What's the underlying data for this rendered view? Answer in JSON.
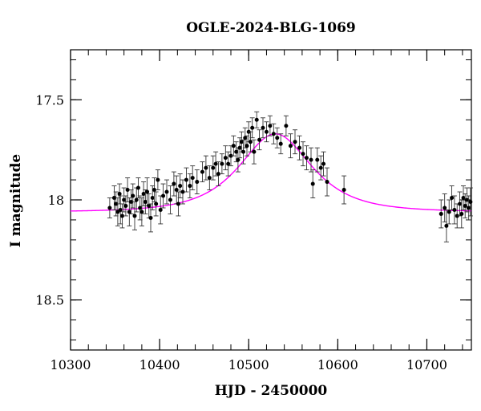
{
  "chart_data": {
    "type": "scatter",
    "title": "OGLE-2024-BLG-1069",
    "xlabel": "HJD - 2450000",
    "ylabel": "I magnitude",
    "xlim": [
      10300,
      10750
    ],
    "ylim": [
      18.75,
      17.25
    ],
    "y_inverted": true,
    "x_ticks": [
      10300,
      10400,
      10500,
      10600,
      10700
    ],
    "y_ticks": [
      17.5,
      18,
      18.5
    ],
    "x_tick_labels": [
      "10300",
      "10400",
      "10500",
      "10600",
      "10700"
    ],
    "y_tick_labels": [
      "17.5",
      "18",
      "18.5"
    ],
    "grid": false,
    "colors": {
      "points": "#000000",
      "model": "#ff00ff"
    },
    "series": [
      {
        "kind": "points_with_errorbars",
        "points": [
          {
            "x": 10344,
            "y": 18.04,
            "err": 0.05
          },
          {
            "x": 10349,
            "y": 17.99,
            "err": 0.06
          },
          {
            "x": 10351,
            "y": 18.02,
            "err": 0.06
          },
          {
            "x": 10353,
            "y": 18.06,
            "err": 0.07
          },
          {
            "x": 10355,
            "y": 17.97,
            "err": 0.05
          },
          {
            "x": 10356,
            "y": 18.05,
            "err": 0.07
          },
          {
            "x": 10358,
            "y": 18.08,
            "err": 0.06
          },
          {
            "x": 10360,
            "y": 18.0,
            "err": 0.06
          },
          {
            "x": 10362,
            "y": 18.03,
            "err": 0.05
          },
          {
            "x": 10364,
            "y": 17.95,
            "err": 0.06
          },
          {
            "x": 10366,
            "y": 18.06,
            "err": 0.07
          },
          {
            "x": 10368,
            "y": 18.01,
            "err": 0.06
          },
          {
            "x": 10370,
            "y": 17.98,
            "err": 0.06
          },
          {
            "x": 10372,
            "y": 18.08,
            "err": 0.07
          },
          {
            "x": 10374,
            "y": 18.0,
            "err": 0.06
          },
          {
            "x": 10376,
            "y": 17.94,
            "err": 0.05
          },
          {
            "x": 10378,
            "y": 18.04,
            "err": 0.06
          },
          {
            "x": 10380,
            "y": 18.06,
            "err": 0.07
          },
          {
            "x": 10382,
            "y": 17.97,
            "err": 0.06
          },
          {
            "x": 10384,
            "y": 18.01,
            "err": 0.06
          },
          {
            "x": 10386,
            "y": 17.96,
            "err": 0.07
          },
          {
            "x": 10388,
            "y": 18.03,
            "err": 0.06
          },
          {
            "x": 10390,
            "y": 18.09,
            "err": 0.07
          },
          {
            "x": 10392,
            "y": 17.99,
            "err": 0.06
          },
          {
            "x": 10394,
            "y": 17.95,
            "err": 0.06
          },
          {
            "x": 10396,
            "y": 18.02,
            "err": 0.06
          },
          {
            "x": 10398,
            "y": 17.9,
            "err": 0.05
          },
          {
            "x": 10401,
            "y": 18.05,
            "err": 0.07
          },
          {
            "x": 10404,
            "y": 17.98,
            "err": 0.06
          },
          {
            "x": 10408,
            "y": 17.96,
            "err": 0.06
          },
          {
            "x": 10412,
            "y": 18.0,
            "err": 0.07
          },
          {
            "x": 10416,
            "y": 17.92,
            "err": 0.06
          },
          {
            "x": 10419,
            "y": 17.95,
            "err": 0.07
          },
          {
            "x": 10421,
            "y": 18.02,
            "err": 0.06
          },
          {
            "x": 10423,
            "y": 17.93,
            "err": 0.06
          },
          {
            "x": 10426,
            "y": 17.96,
            "err": 0.06
          },
          {
            "x": 10430,
            "y": 17.9,
            "err": 0.06
          },
          {
            "x": 10434,
            "y": 17.93,
            "err": 0.06
          },
          {
            "x": 10437,
            "y": 17.89,
            "err": 0.06
          },
          {
            "x": 10442,
            "y": 17.91,
            "err": 0.06
          },
          {
            "x": 10448,
            "y": 17.86,
            "err": 0.05
          },
          {
            "x": 10452,
            "y": 17.84,
            "err": 0.06
          },
          {
            "x": 10456,
            "y": 17.89,
            "err": 0.06
          },
          {
            "x": 10460,
            "y": 17.84,
            "err": 0.06
          },
          {
            "x": 10463,
            "y": 17.82,
            "err": 0.06
          },
          {
            "x": 10466,
            "y": 17.87,
            "err": 0.06
          },
          {
            "x": 10470,
            "y": 17.82,
            "err": 0.05
          },
          {
            "x": 10474,
            "y": 17.79,
            "err": 0.06
          },
          {
            "x": 10477,
            "y": 17.82,
            "err": 0.06
          },
          {
            "x": 10480,
            "y": 17.78,
            "err": 0.05
          },
          {
            "x": 10483,
            "y": 17.73,
            "err": 0.05
          },
          {
            "x": 10486,
            "y": 17.76,
            "err": 0.05
          },
          {
            "x": 10488,
            "y": 17.8,
            "err": 0.06
          },
          {
            "x": 10490,
            "y": 17.74,
            "err": 0.05
          },
          {
            "x": 10492,
            "y": 17.71,
            "err": 0.05
          },
          {
            "x": 10494,
            "y": 17.76,
            "err": 0.06
          },
          {
            "x": 10496,
            "y": 17.69,
            "err": 0.05
          },
          {
            "x": 10498,
            "y": 17.73,
            "err": 0.05
          },
          {
            "x": 10500,
            "y": 17.66,
            "err": 0.05
          },
          {
            "x": 10502,
            "y": 17.71,
            "err": 0.05
          },
          {
            "x": 10504,
            "y": 17.64,
            "err": 0.05
          },
          {
            "x": 10506,
            "y": 17.76,
            "err": 0.06
          },
          {
            "x": 10509,
            "y": 17.6,
            "err": 0.04
          },
          {
            "x": 10512,
            "y": 17.7,
            "err": 0.05
          },
          {
            "x": 10516,
            "y": 17.64,
            "err": 0.05
          },
          {
            "x": 10520,
            "y": 17.66,
            "err": 0.05
          },
          {
            "x": 10524,
            "y": 17.63,
            "err": 0.05
          },
          {
            "x": 10528,
            "y": 17.67,
            "err": 0.05
          },
          {
            "x": 10532,
            "y": 17.69,
            "err": 0.05
          },
          {
            "x": 10536,
            "y": 17.72,
            "err": 0.05
          },
          {
            "x": 10542,
            "y": 17.63,
            "err": 0.05
          },
          {
            "x": 10547,
            "y": 17.73,
            "err": 0.06
          },
          {
            "x": 10552,
            "y": 17.71,
            "err": 0.06
          },
          {
            "x": 10557,
            "y": 17.74,
            "err": 0.06
          },
          {
            "x": 10561,
            "y": 17.77,
            "err": 0.06
          },
          {
            "x": 10565,
            "y": 17.79,
            "err": 0.06
          },
          {
            "x": 10570,
            "y": 17.8,
            "err": 0.06
          },
          {
            "x": 10572,
            "y": 17.92,
            "err": 0.07
          },
          {
            "x": 10577,
            "y": 17.8,
            "err": 0.06
          },
          {
            "x": 10581,
            "y": 17.84,
            "err": 0.06
          },
          {
            "x": 10584,
            "y": 17.82,
            "err": 0.06
          },
          {
            "x": 10588,
            "y": 17.91,
            "err": 0.07
          },
          {
            "x": 10607,
            "y": 17.95,
            "err": 0.07
          },
          {
            "x": 10716,
            "y": 18.07,
            "err": 0.07
          },
          {
            "x": 10720,
            "y": 18.04,
            "err": 0.07
          },
          {
            "x": 10722,
            "y": 18.13,
            "err": 0.08
          },
          {
            "x": 10725,
            "y": 18.06,
            "err": 0.06
          },
          {
            "x": 10728,
            "y": 17.99,
            "err": 0.06
          },
          {
            "x": 10731,
            "y": 18.05,
            "err": 0.07
          },
          {
            "x": 10734,
            "y": 18.08,
            "err": 0.06
          },
          {
            "x": 10737,
            "y": 18.02,
            "err": 0.06
          },
          {
            "x": 10739,
            "y": 18.07,
            "err": 0.07
          },
          {
            "x": 10741,
            "y": 17.99,
            "err": 0.06
          },
          {
            "x": 10743,
            "y": 18.03,
            "err": 0.06
          },
          {
            "x": 10745,
            "y": 18.0,
            "err": 0.06
          },
          {
            "x": 10747,
            "y": 18.04,
            "err": 0.06
          },
          {
            "x": 10749,
            "y": 18.01,
            "err": 0.07
          }
        ]
      },
      {
        "kind": "model_curve",
        "t0": 10530,
        "base_mag": 18.06,
        "peak_mag": 17.67,
        "tE": 52
      }
    ]
  }
}
